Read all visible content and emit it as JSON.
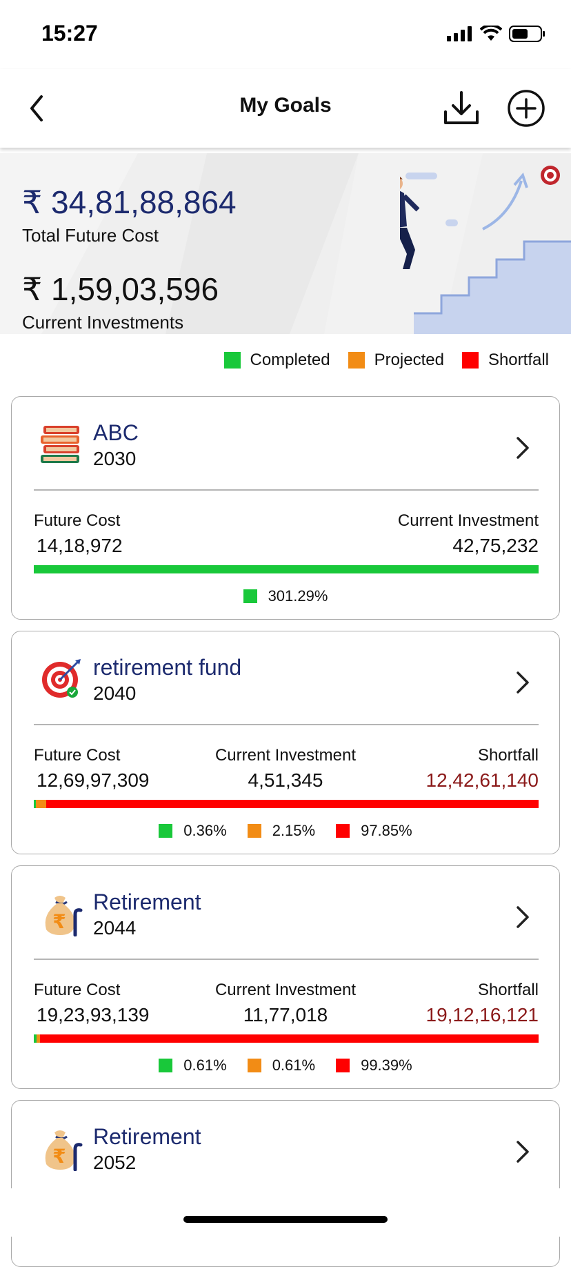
{
  "status_bar": {
    "time": "15:27"
  },
  "nav": {
    "title": "My Goals"
  },
  "summary": {
    "total_future_cost": "₹ 34,81,88,864",
    "total_future_cost_label": "Total Future Cost",
    "current_investments": "₹ 1,59,03,596",
    "current_investments_label": "Current Investments"
  },
  "legend": [
    {
      "label": "Completed",
      "color": "#19c83a"
    },
    {
      "label": "Projected",
      "color": "#f28c15"
    },
    {
      "label": "Shortfall",
      "color": "#ff0000"
    }
  ],
  "colors": {
    "completed": "#19c83a",
    "projected": "#f28c15",
    "shortfall": "#ff0000",
    "shortfall_text": "#8b1a1a",
    "title_blue": "#1c2a6e"
  },
  "goals": [
    {
      "icon": "books-icon",
      "name": "ABC",
      "year": "2030",
      "future_cost_label": "Future Cost",
      "future_cost": "14,18,972",
      "current_investment_label": "Current Investment",
      "current_investment": "42,75,232",
      "percentages": [
        {
          "value": "301.29%",
          "color": "#19c83a"
        }
      ],
      "progress": {
        "completed": 100,
        "projected": 0
      }
    },
    {
      "icon": "target-icon",
      "name": "retirement fund",
      "year": "2040",
      "future_cost_label": "Future Cost",
      "future_cost": "12,69,97,309",
      "current_investment_label": "Current Investment",
      "current_investment": "4,51,345",
      "shortfall_label": "Shortfall",
      "shortfall": "12,42,61,140",
      "percentages": [
        {
          "value": "0.36%",
          "color": "#19c83a"
        },
        {
          "value": "2.15%",
          "color": "#f28c15"
        },
        {
          "value": "97.85%",
          "color": "#ff0000"
        }
      ],
      "progress": {
        "completed": 0.36,
        "projected": 2.15
      }
    },
    {
      "icon": "money-bag-icon",
      "name": "Retirement",
      "year": "2044",
      "future_cost_label": "Future Cost",
      "future_cost": "19,23,93,139",
      "current_investment_label": "Current Investment",
      "current_investment": "11,77,018",
      "shortfall_label": "Shortfall",
      "shortfall": "19,12,16,121",
      "percentages": [
        {
          "value": "0.61%",
          "color": "#19c83a"
        },
        {
          "value": "0.61%",
          "color": "#f28c15"
        },
        {
          "value": "99.39%",
          "color": "#ff0000"
        }
      ],
      "progress": {
        "completed": 0.61,
        "projected": 0.61
      }
    },
    {
      "icon": "money-bag-icon",
      "name": "Retirement",
      "year": "2052"
    }
  ]
}
